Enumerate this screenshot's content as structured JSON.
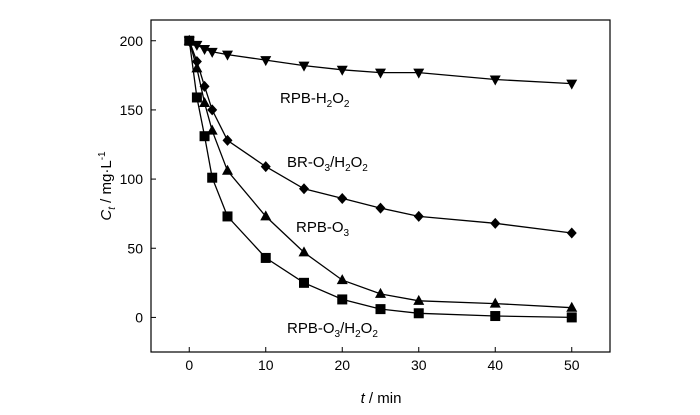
{
  "chart_data": {
    "type": "line",
    "xlabel": "t / min",
    "ylabel": "Ct / mg·L-1",
    "xlim": [
      -5,
      55
    ],
    "ylim": [
      -25,
      215
    ],
    "xticks": [
      0,
      10,
      20,
      30,
      40,
      50
    ],
    "yticks": [
      0,
      50,
      100,
      150,
      200
    ],
    "grid": false,
    "legend": "none",
    "series": [
      {
        "name": "RPB-H2O2",
        "marker": "triangle-down",
        "x": [
          0,
          1,
          2,
          3,
          5,
          10,
          15,
          20,
          25,
          30,
          40,
          50
        ],
        "y": [
          200,
          197,
          194,
          192,
          190,
          186,
          182,
          179,
          177,
          177,
          172,
          169
        ]
      },
      {
        "name": "BR-O3/H2O2",
        "marker": "diamond",
        "x": [
          0,
          1,
          2,
          3,
          5,
          10,
          15,
          20,
          25,
          30,
          40,
          50
        ],
        "y": [
          200,
          185,
          167,
          150,
          128,
          109,
          93,
          86,
          79,
          73,
          68,
          61
        ]
      },
      {
        "name": "RPB-O3",
        "marker": "triangle-up",
        "x": [
          0,
          1,
          2,
          3,
          5,
          10,
          15,
          20,
          25,
          30,
          40,
          50
        ],
        "y": [
          200,
          180,
          155,
          135,
          106,
          73,
          47,
          27,
          17,
          12,
          10,
          7
        ]
      },
      {
        "name": "RPB-O3/H2O2",
        "marker": "square",
        "x": [
          0,
          1,
          2,
          3,
          5,
          10,
          15,
          20,
          25,
          30,
          40,
          50
        ],
        "y": [
          200,
          159,
          131,
          101,
          73,
          43,
          25,
          13,
          6,
          3,
          1,
          0
        ]
      }
    ]
  },
  "labels": {
    "xlabel_var": "t",
    "xlabel_unit": " / min",
    "ylabel_var": "C",
    "ylabel_sub": "t",
    "ylabel_unit": " / mg·L",
    "ylabel_sup": "-1",
    "s1_a": "RPB-H",
    "s1_b": "2",
    "s1_c": "O",
    "s1_d": "2",
    "s2_a": "BR-O",
    "s2_b": "3",
    "s2_c": "/H",
    "s2_d": "2",
    "s2_e": "O",
    "s2_f": "2",
    "s3_a": "RPB-O",
    "s3_b": "3",
    "s4_a": "RPB-O",
    "s4_b": "3",
    "s4_c": "/H",
    "s4_d": "2",
    "s4_e": "O",
    "s4_f": "2"
  }
}
